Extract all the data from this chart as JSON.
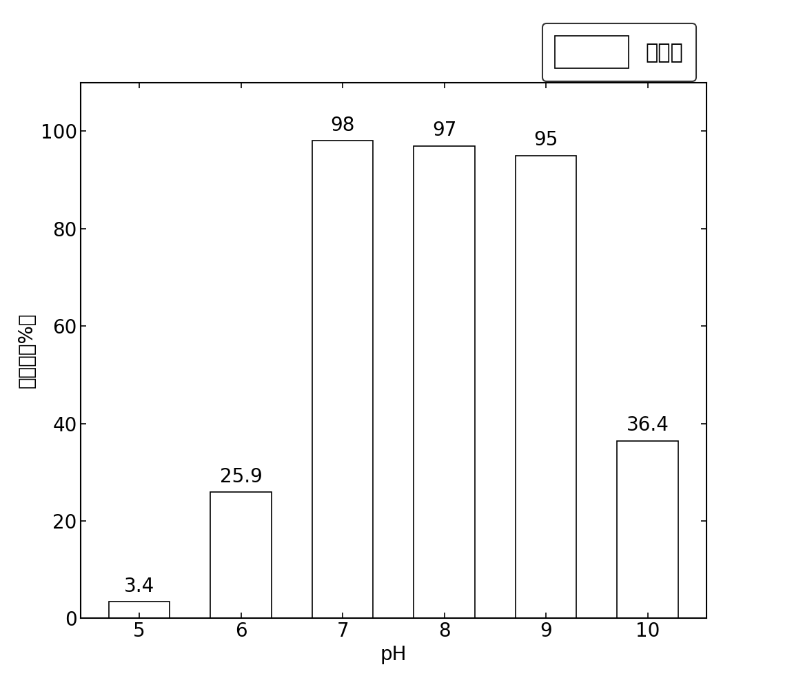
{
  "categories": [
    5,
    6,
    7,
    8,
    9,
    10
  ],
  "values": [
    3.4,
    25.9,
    98,
    97,
    95,
    36.4
  ],
  "bar_labels": [
    "3.4",
    "25.9",
    "98",
    "97",
    "95",
    "36.4"
  ],
  "bar_color": "#ffffff",
  "bar_edgecolor": "#000000",
  "xlabel": "pH",
  "ylabel": "降解率（%）",
  "ylim": [
    0,
    110
  ],
  "yticks": [
    0,
    20,
    40,
    60,
    80,
    100
  ],
  "legend_label": "降解率",
  "bar_width": 0.6,
  "label_fontsize": 20,
  "tick_fontsize": 20,
  "legend_fontsize": 22,
  "annotation_fontsize": 20,
  "background_color": "#ffffff",
  "linewidth": 1.2
}
